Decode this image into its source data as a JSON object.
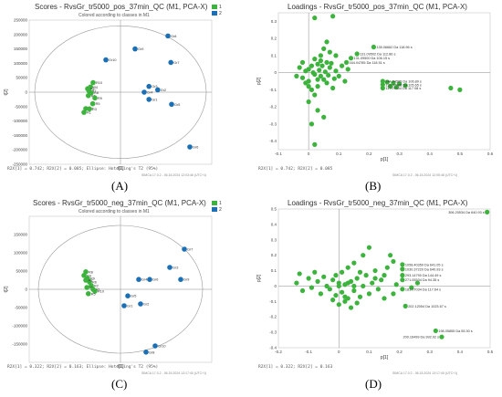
{
  "chart_data": [
    {
      "type": "scatter",
      "title": "Scores - RvsGr_tr5000_pos_37min_QC (M1, PCA-X)",
      "subtitle": "Colored according to classes in M1",
      "xlabel": "t[1]",
      "ylabel": "t[2]",
      "xlim": [
        -250000,
        250000
      ],
      "ylim": [
        -250000,
        250000
      ],
      "yticks": [
        "250000",
        "200000",
        "150000",
        "100000",
        "50000",
        "0",
        "-50000",
        "-100000",
        "-150000",
        "-200000",
        "-250000"
      ],
      "legend": [
        {
          "name": "1",
          "color": "#3cb33c"
        },
        {
          "name": "2",
          "color": "#1a6fb5"
        }
      ],
      "footer": "R2X[1] = 0.742; R2X[2] = 0.085; Ellipse: Hotelling's T2 (95%)",
      "footer_small": "SIMCA 17.0.2 - 06.15.2024 12:03:46 (UTC+1)",
      "ellipse": {
        "rx": 235000,
        "ry": 230000
      },
      "series": [
        {
          "name": "1",
          "color": "#3cb33c",
          "points": [
            {
              "x": -75000,
              "y": 33000,
              "label": "R10"
            },
            {
              "x": -82000,
              "y": 18000,
              "label": "R4"
            },
            {
              "x": -90000,
              "y": 12000,
              "label": "R2"
            },
            {
              "x": -86000,
              "y": 4000,
              "label": "R7"
            },
            {
              "x": -80000,
              "y": -2000,
              "label": "R8"
            },
            {
              "x": -88000,
              "y": -12000,
              "label": "R6"
            },
            {
              "x": -70000,
              "y": -20000,
              "label": "R9"
            },
            {
              "x": -76000,
              "y": -40000,
              "label": "R5"
            },
            {
              "x": -95000,
              "y": -57000,
              "label": "R2"
            },
            {
              "x": -85000,
              "y": -58000,
              "label": "R3"
            },
            {
              "x": -100000,
              "y": -70000,
              "label": "R1"
            }
          ]
        },
        {
          "name": "2",
          "color": "#1a6fb5",
          "points": [
            {
              "x": 130000,
              "y": 195000,
              "label": "Gr8"
            },
            {
              "x": 40000,
              "y": 150000,
              "label": "Gr9"
            },
            {
              "x": -40000,
              "y": 112000,
              "label": "Gr10"
            },
            {
              "x": 138000,
              "y": 103000,
              "label": "Gr7"
            },
            {
              "x": 78000,
              "y": 20000,
              "label": "Gr3"
            },
            {
              "x": 65000,
              "y": 0,
              "label": "Gr4"
            },
            {
              "x": 102000,
              "y": 8000,
              "label": "Gr2"
            },
            {
              "x": 78000,
              "y": -25000,
              "label": "Gr1"
            },
            {
              "x": 140000,
              "y": -42000,
              "label": "Gr5"
            },
            {
              "x": 190000,
              "y": -190000,
              "label": "Gr6"
            }
          ]
        }
      ],
      "panel_label": "(A)"
    },
    {
      "type": "scatter",
      "title": "Loadings - RvsGr_tr5000_pos_37min_QC (M1, PCA-X)",
      "xlabel": "p[1]",
      "ylabel": "p[2]",
      "xlim": [
        -0.1,
        0.6
      ],
      "ylim": [
        -0.45,
        0.35
      ],
      "xticks": [
        "-0.1",
        "0",
        "0.1",
        "0.2",
        "0.3",
        "0.4",
        "0.5",
        "0.6"
      ],
      "yticks": [
        "0.3",
        "0.2",
        "0.1",
        "0",
        "-0.1",
        "-0.2",
        "-0.3",
        "-0.4"
      ],
      "footer": "R2X[1] = 0.742; R2X[2] = 0.085",
      "footer_small": "SIMCA 17.0.2 - 06.15.2024 12:05:48 (UTC+1)",
      "annotations": [
        {
          "x": 0.215,
          "y": 0.15,
          "text": "135.06662 Da 118.96 s"
        },
        {
          "x": 0.16,
          "y": 0.11,
          "text": "131.09502 Da 112.86 s"
        },
        {
          "x": 0.14,
          "y": 0.085,
          "text": "131.09500 Da 106.15 s"
        },
        {
          "x": 0.125,
          "y": 0.06,
          "text": "164.04785 Da 118.51 s"
        },
        {
          "x": 0.245,
          "y": -0.05,
          "text": "244.04585 Da 106.89 s"
        },
        {
          "x": 0.245,
          "y": -0.07,
          "text": "139.07065 Da 105.65 s"
        },
        {
          "x": 0.245,
          "y": -0.09,
          "text": "117.07034 Da 117.08 s"
        }
      ],
      "points": [
        [
          0.08,
          0.33
        ],
        [
          0.02,
          0.32
        ],
        [
          0.05,
          0.14
        ],
        [
          0.07,
          0.12
        ],
        [
          0.09,
          0.1
        ],
        [
          0.06,
          0.18
        ],
        [
          0.04,
          0.07
        ],
        [
          0.03,
          0.05
        ],
        [
          0.01,
          0.04
        ],
        [
          0.0,
          0.02
        ],
        [
          -0.01,
          0.01
        ],
        [
          0.02,
          -0.01
        ],
        [
          0.04,
          -0.02
        ],
        [
          0.05,
          -0.04
        ],
        [
          0.0,
          -0.05
        ],
        [
          -0.02,
          -0.03
        ],
        [
          0.03,
          -0.08
        ],
        [
          0.01,
          -0.1
        ],
        [
          0.06,
          -0.06
        ],
        [
          0.08,
          -0.09
        ],
        [
          0.02,
          -0.13
        ],
        [
          0.0,
          -0.17
        ],
        [
          0.03,
          -0.22
        ],
        [
          0.05,
          -0.26
        ],
        [
          0.01,
          -0.3
        ],
        [
          0.02,
          -0.42
        ],
        [
          -0.03,
          0.03
        ],
        [
          -0.04,
          -0.02
        ],
        [
          0.07,
          0.03
        ],
        [
          0.09,
          0.01
        ],
        [
          0.1,
          -0.02
        ],
        [
          0.11,
          0.04
        ],
        [
          0.12,
          -0.05
        ],
        [
          0.13,
          0.02
        ],
        [
          0.06,
          0.06
        ],
        [
          0.04,
          0.1
        ],
        [
          0.02,
          0.08
        ],
        [
          -0.02,
          0.06
        ],
        [
          0.0,
          -0.08
        ],
        [
          0.015,
          0.0
        ],
        [
          0.035,
          0.015
        ],
        [
          0.055,
          0.005
        ],
        [
          0.03,
          -0.04
        ],
        [
          0.045,
          0.04
        ],
        [
          -0.01,
          -0.06
        ],
        [
          0.065,
          -0.015
        ],
        [
          0.075,
          0.055
        ],
        [
          0.085,
          -0.035
        ],
        [
          0.215,
          0.15
        ],
        [
          0.16,
          0.11
        ],
        [
          0.14,
          0.085
        ],
        [
          0.125,
          0.06
        ],
        [
          0.245,
          -0.05
        ],
        [
          0.26,
          -0.055
        ],
        [
          0.28,
          -0.06
        ],
        [
          0.3,
          -0.065
        ],
        [
          0.32,
          -0.075
        ],
        [
          0.245,
          -0.07
        ],
        [
          0.27,
          -0.08
        ],
        [
          0.245,
          -0.09
        ],
        [
          0.29,
          -0.085
        ],
        [
          0.47,
          -0.09
        ],
        [
          0.5,
          -0.1
        ]
      ],
      "panel_label": "(B)"
    },
    {
      "type": "scatter",
      "title": "Scores - RvsGr_tr5000_neg_37min_QC (M1, PCA-X)",
      "subtitle": "Colored according to classes in M1",
      "xlabel": "t[1]",
      "ylabel": "t[2]",
      "xlim": [
        -250000,
        250000
      ],
      "ylim": [
        -200000,
        200000
      ],
      "yticks": [
        "150000",
        "100000",
        "50000",
        "0",
        "-50000",
        "-100000",
        "-150000"
      ],
      "legend": [
        {
          "name": "1",
          "color": "#3cb33c"
        },
        {
          "name": "2",
          "color": "#1a6fb5"
        }
      ],
      "footer": "R2X[1] = 0.322; R2X[2] = 0.163; Ellipse: Hotelling's T2 (95%)",
      "footer_small": "SIMCA 17.0.2 - 06.15.2024 13:17:40 (UTC+1)",
      "ellipse": {
        "rx": 225000,
        "ry": 175000
      },
      "series": [
        {
          "name": "1",
          "color": "#3cb33c",
          "points": [
            {
              "x": -95000,
              "y": 48000,
              "label": "R8"
            },
            {
              "x": -100000,
              "y": 38000,
              "label": "R4"
            },
            {
              "x": -90000,
              "y": 30000,
              "label": "R9"
            },
            {
              "x": -85000,
              "y": 20000,
              "label": "R6"
            },
            {
              "x": -80000,
              "y": 10000,
              "label": "R2"
            },
            {
              "x": -92000,
              "y": 5000,
              "label": "R3"
            },
            {
              "x": -75000,
              "y": 0,
              "label": "R1"
            },
            {
              "x": -70000,
              "y": -5000,
              "label": "R10"
            },
            {
              "x": -88000,
              "y": -12000,
              "label": "R5"
            },
            {
              "x": -95000,
              "y": 25000,
              "label": "R7"
            }
          ]
        },
        {
          "name": "2",
          "color": "#1a6fb5",
          "points": [
            {
              "x": 175000,
              "y": 110000,
              "label": "Gr7"
            },
            {
              "x": 135000,
              "y": 60000,
              "label": "Gr3"
            },
            {
              "x": 165000,
              "y": 27000,
              "label": "Gr9"
            },
            {
              "x": 50000,
              "y": 27000,
              "label": "Gr4"
            },
            {
              "x": 80000,
              "y": 27000,
              "label": "Gr6"
            },
            {
              "x": 20000,
              "y": -18000,
              "label": "Gr5"
            },
            {
              "x": 55000,
              "y": -40000,
              "label": "Gr2"
            },
            {
              "x": 10000,
              "y": -45000,
              "label": "Gr1"
            },
            {
              "x": 95000,
              "y": -155000,
              "label": "Gr10"
            },
            {
              "x": 70000,
              "y": -172000,
              "label": "Gr8"
            }
          ]
        }
      ],
      "panel_label": "(C)"
    },
    {
      "type": "scatter",
      "title": "Loadings - RvsGr_tr5000_neg_37min_QC (M1, PCA-X)",
      "xlabel": "p[1]",
      "ylabel": "p[2]",
      "xlim": [
        -0.2,
        0.5
      ],
      "ylim": [
        -0.4,
        0.5
      ],
      "xticks": [
        "-0.2",
        "-0.1",
        "0",
        "0.1",
        "0.2",
        "0.3",
        "0.4",
        "0.5"
      ],
      "yticks": [
        "0.5",
        "0.4",
        "0.3",
        "0.2",
        "0.1",
        "0",
        "-0.1",
        "-0.2",
        "-0.3",
        "-0.4"
      ],
      "footer": "R2X[1] = 0.322; R2X[2] = 0.163",
      "footer_small": "SIMCA 17.0.2 - 06.15.2024 13:17:40 (UTC+1)",
      "annotations": [
        {
          "x": 0.49,
          "y": 0.48,
          "text": "306.20534 Da 640.93 s"
        },
        {
          "x": 0.21,
          "y": 0.14,
          "text": "1058.40359 Da 641.05 s"
        },
        {
          "x": 0.21,
          "y": 0.11,
          "text": "1030.37220 Da 640.93 s"
        },
        {
          "x": 0.21,
          "y": 0.07,
          "text": "293.14790 Da 144.49 s"
        },
        {
          "x": 0.21,
          "y": 0.04,
          "text": "271.05534 Da 94.35 s"
        },
        {
          "x": 0.21,
          "y": -0.02,
          "text": "181.07034 Da 117.64 s"
        },
        {
          "x": 0.22,
          "y": -0.13,
          "text": "202.12054 Da 1023.67 s"
        },
        {
          "x": 0.32,
          "y": -0.29,
          "text": "198.05855 Da 55.30 s"
        },
        {
          "x": 0.34,
          "y": -0.33,
          "text": "200.16499 Da 992.92 s"
        }
      ],
      "points": [
        [
          -0.13,
          0.08
        ],
        [
          -0.14,
          0.02
        ],
        [
          -0.12,
          -0.03
        ],
        [
          -0.1,
          0.05
        ],
        [
          -0.09,
          -0.01
        ],
        [
          -0.08,
          0.09
        ],
        [
          -0.07,
          0.03
        ],
        [
          -0.06,
          -0.05
        ],
        [
          -0.05,
          0.06
        ],
        [
          -0.04,
          0.0
        ],
        [
          -0.03,
          -0.02
        ],
        [
          -0.02,
          0.04
        ],
        [
          -0.01,
          -0.06
        ],
        [
          0.0,
          0.02
        ],
        [
          0.01,
          -0.04
        ],
        [
          0.02,
          0.01
        ],
        [
          0.03,
          -0.08
        ],
        [
          0.04,
          0.03
        ],
        [
          0.05,
          -0.03
        ],
        [
          0.06,
          0.05
        ],
        [
          0.07,
          -0.07
        ],
        [
          0.08,
          0.0
        ],
        [
          0.09,
          0.07
        ],
        [
          0.1,
          -0.05
        ],
        [
          0.11,
          0.02
        ],
        [
          0.12,
          0.1
        ],
        [
          0.13,
          -0.02
        ],
        [
          0.14,
          0.04
        ],
        [
          0.0,
          -0.12
        ],
        [
          0.02,
          -0.1
        ],
        [
          0.04,
          -0.14
        ],
        [
          0.06,
          -0.11
        ],
        [
          -0.02,
          -0.09
        ],
        [
          0.01,
          0.09
        ],
        [
          0.03,
          0.12
        ],
        [
          0.05,
          0.15
        ],
        [
          0.08,
          0.2
        ],
        [
          0.1,
          0.25
        ],
        [
          0.02,
          -0.07
        ],
        [
          0.07,
          0.09
        ],
        [
          0.15,
          0.07
        ],
        [
          0.16,
          0.12
        ],
        [
          0.18,
          0.16
        ],
        [
          0.17,
          0.2
        ],
        [
          0.12,
          0.05
        ],
        [
          -0.01,
          0.07
        ],
        [
          0.0,
          0.0
        ],
        [
          0.03,
          0.02
        ],
        [
          0.05,
          0.0
        ],
        [
          0.49,
          0.48
        ],
        [
          0.21,
          0.14
        ],
        [
          0.21,
          0.11
        ],
        [
          0.21,
          0.07
        ],
        [
          0.21,
          0.04
        ],
        [
          0.21,
          -0.02
        ],
        [
          0.22,
          -0.13
        ],
        [
          0.32,
          -0.29
        ],
        [
          0.34,
          -0.33
        ],
        [
          0.18,
          -0.05
        ],
        [
          0.24,
          -0.01
        ],
        [
          0.26,
          0.02
        ],
        [
          0.15,
          -0.08
        ],
        [
          0.19,
          0.01
        ]
      ],
      "panel_label": "(D)"
    }
  ]
}
